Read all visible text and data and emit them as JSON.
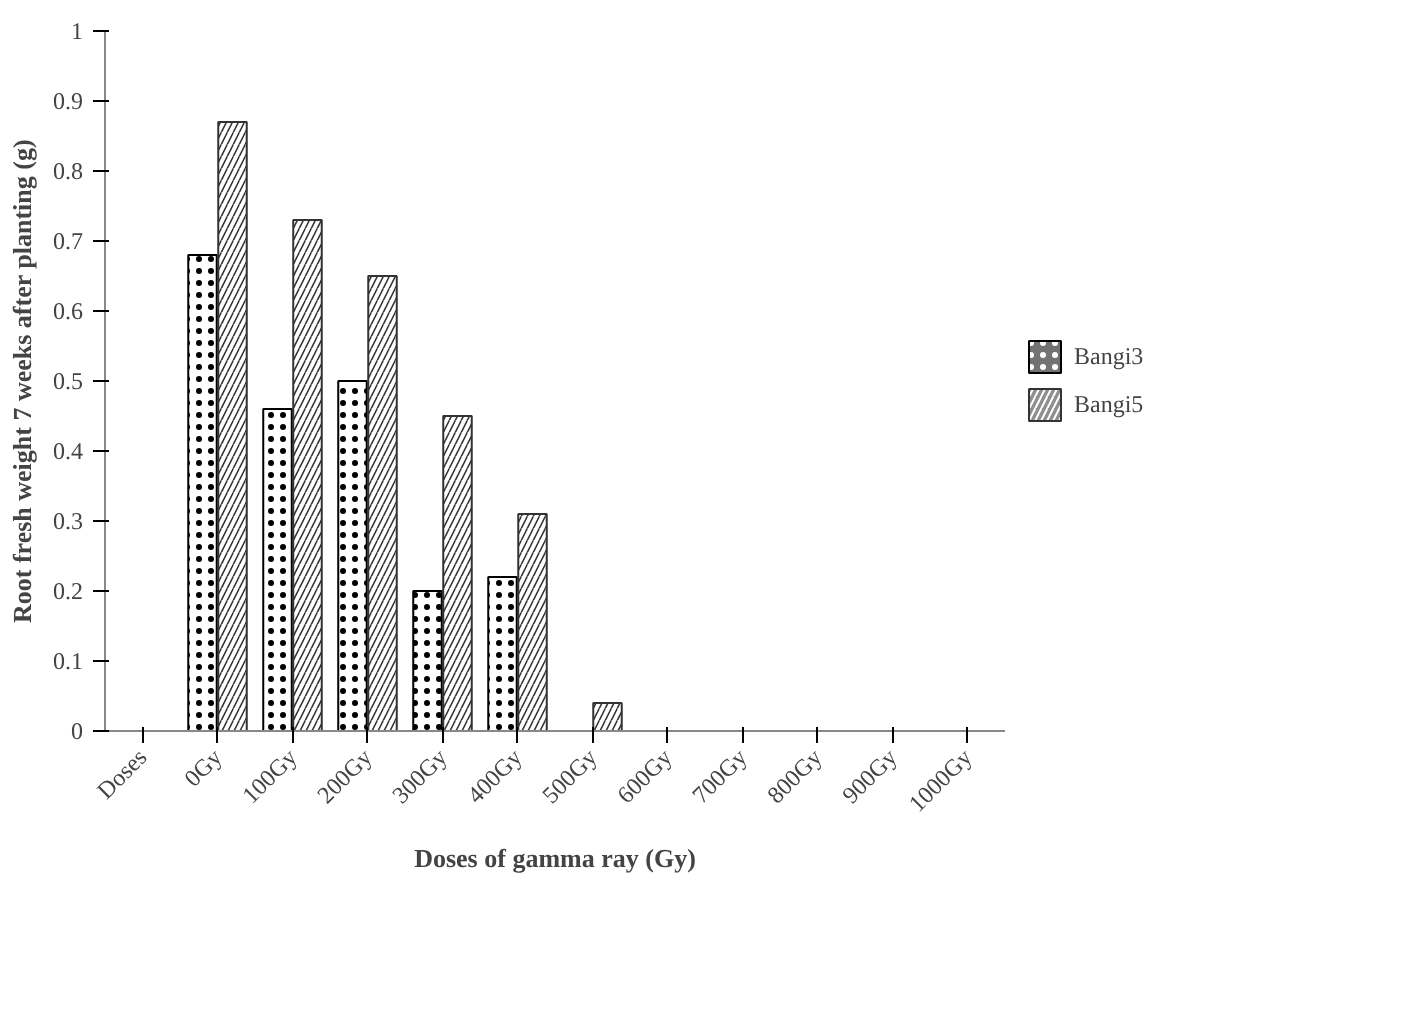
{
  "chart_data": {
    "type": "bar",
    "xlabel": "Doses of gamma ray (Gy)",
    "ylabel": "Root fresh weight 7 weeks after planting (g)",
    "categories": [
      "Doses",
      "0Gy",
      "100Gy",
      "200Gy",
      "300Gy",
      "400Gy",
      "500Gy",
      "600Gy",
      "700Gy",
      "800Gy",
      "900Gy",
      "1000Gy"
    ],
    "series": [
      {
        "name": "Bangi3",
        "color": "#000000",
        "values": [
          null,
          0.68,
          0.46,
          0.5,
          0.2,
          0.22,
          0,
          0,
          0,
          0,
          0,
          0
        ]
      },
      {
        "name": "Bangi5",
        "color": "#333333",
        "values": [
          null,
          0.87,
          0.73,
          0.65,
          0.45,
          0.31,
          0.04,
          0,
          0,
          0,
          0,
          0
        ]
      }
    ],
    "ylim": [
      0,
      1
    ],
    "yticks": [
      0,
      0.1,
      0.2,
      0.3,
      0.4,
      0.5,
      0.6,
      0.7,
      0.8,
      0.9,
      1
    ],
    "grid": false,
    "legend": "right"
  }
}
